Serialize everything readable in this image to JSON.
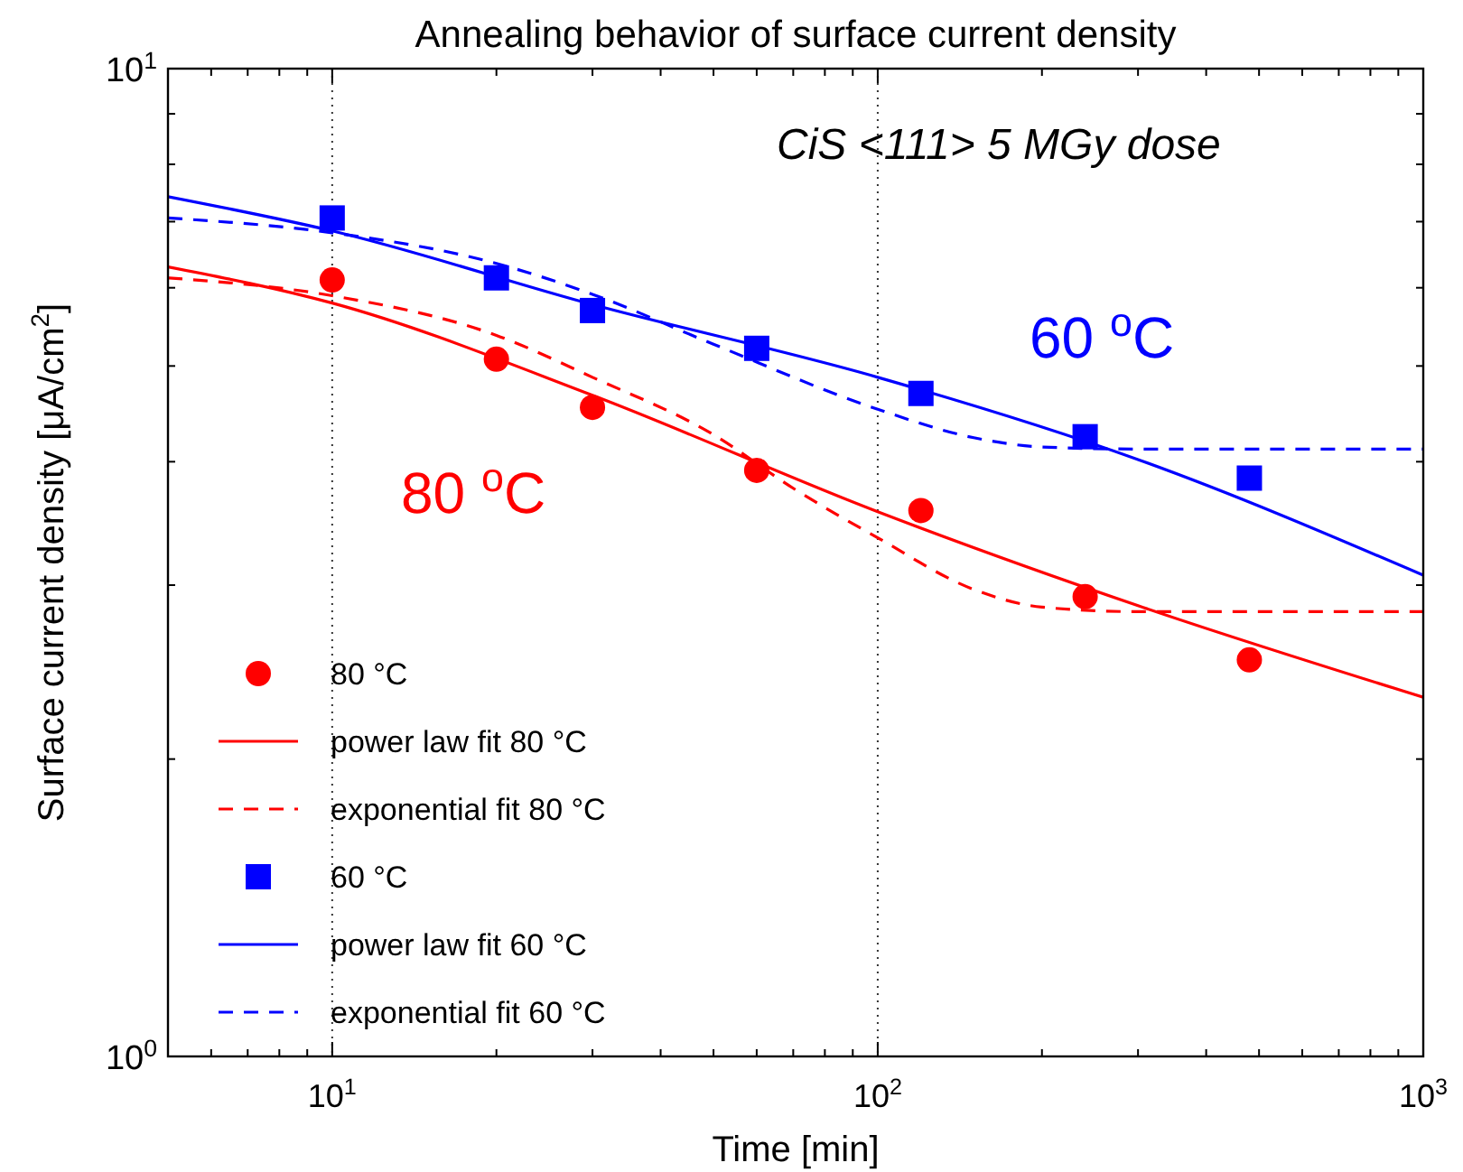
{
  "chart_data": {
    "type": "scatter",
    "title": "Annealing behavior of surface current density",
    "xlabel": "Time [min]",
    "ylabel": "Surface current density [μA/cm$^{2}$]",
    "log": "xy",
    "grid": "x",
    "legend": "bottom left",
    "xlim": [
      5,
      1000
    ],
    "ylim": [
      1,
      10
    ],
    "xticks": [
      {
        "value": 6,
        "label": null
      },
      {
        "value": 7,
        "label": null
      },
      {
        "value": 8,
        "label": null
      },
      {
        "value": 9,
        "label": null
      },
      {
        "value": 10,
        "label": "10$^{1}$"
      },
      {
        "value": 20,
        "label": null
      },
      {
        "value": 30,
        "label": null
      },
      {
        "value": 40,
        "label": null
      },
      {
        "value": 50,
        "label": null
      },
      {
        "value": 60,
        "label": null
      },
      {
        "value": 70,
        "label": null
      },
      {
        "value": 80,
        "label": null
      },
      {
        "value": 90,
        "label": null
      },
      {
        "value": 100,
        "label": "10$^{2}$"
      },
      {
        "value": 200,
        "label": null
      },
      {
        "value": 300,
        "label": null
      },
      {
        "value": 400,
        "label": null
      },
      {
        "value": 500,
        "label": null
      },
      {
        "value": 600,
        "label": null
      },
      {
        "value": 700,
        "label": null
      },
      {
        "value": 800,
        "label": null
      },
      {
        "value": 900,
        "label": null
      },
      {
        "value": 1000,
        "label": "10$^{3}$"
      }
    ],
    "yticks": [
      {
        "value": 1,
        "label": "10$^{0}$"
      },
      {
        "value": 2,
        "label": null
      },
      {
        "value": 3,
        "label": null
      },
      {
        "value": 4,
        "label": null
      },
      {
        "value": 5,
        "label": null
      },
      {
        "value": 6,
        "label": null
      },
      {
        "value": 7,
        "label": null
      },
      {
        "value": 8,
        "label": null
      },
      {
        "value": 9,
        "label": null
      },
      {
        "value": 10,
        "label": "10$^{1}$"
      }
    ],
    "annotations": [
      "CiS <111> 5 MGy dose",
      "60 $^{o}$C",
      "80 $^{o}$C"
    ],
    "series": [
      {
        "name": "80 °C",
        "marker": "circle",
        "color": "#ff0000",
        "x": [
          10,
          20,
          30,
          60,
          120,
          240,
          480
        ],
        "values": [
          6.11,
          5.08,
          4.54,
          3.92,
          3.57,
          2.92,
          2.52
        ]
      },
      {
        "name": "power law fit 80 °C",
        "type": "line",
        "marker": "none",
        "line_style": "solid",
        "color": "#ff0000",
        "x": [
          5,
          10,
          30,
          100,
          300,
          1000
        ],
        "values": [
          6.3,
          5.79,
          4.67,
          3.56,
          2.86,
          2.31
        ]
      },
      {
        "name": "exponential fit 80 °C",
        "type": "line",
        "marker": "none",
        "line_style": "dashed",
        "color": "#ff0000",
        "x": [
          5,
          10,
          20,
          30,
          50,
          70,
          100,
          150,
          200,
          300,
          1000
        ],
        "values": [
          6.14,
          5.89,
          5.37,
          4.87,
          4.26,
          3.76,
          3.35,
          2.97,
          2.85,
          2.82,
          2.82
        ]
      },
      {
        "name": "60 °C",
        "marker": "square",
        "color": "#0000ff",
        "x": [
          10,
          20,
          30,
          60,
          120,
          240,
          480
        ],
        "values": [
          7.06,
          6.14,
          5.69,
          5.21,
          4.69,
          4.24,
          3.85
        ]
      },
      {
        "name": "power law fit 60 °C",
        "type": "line",
        "marker": "none",
        "line_style": "solid",
        "color": "#0000ff",
        "x": [
          5,
          10,
          30,
          100,
          300,
          1000
        ],
        "values": [
          7.42,
          6.85,
          5.77,
          4.87,
          4.02,
          3.07
        ]
      },
      {
        "name": "exponential fit 60 °C",
        "type": "line",
        "marker": "none",
        "line_style": "dashed",
        "color": "#0000ff",
        "x": [
          5,
          10,
          20,
          30,
          50,
          100,
          150,
          200,
          300,
          1000
        ],
        "values": [
          7.06,
          6.82,
          6.35,
          5.91,
          5.26,
          4.52,
          4.23,
          4.14,
          4.12,
          4.12
        ]
      }
    ]
  }
}
